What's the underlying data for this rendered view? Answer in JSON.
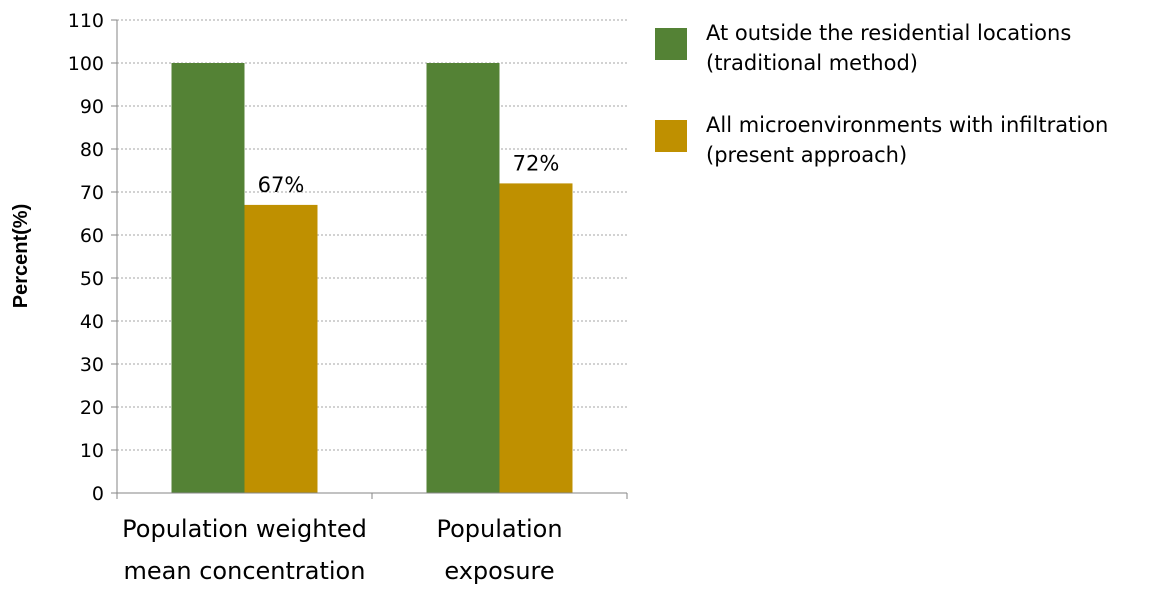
{
  "chart_data": {
    "type": "bar",
    "categories": [
      [
        "Population weighted",
        "mean concentration"
      ],
      [
        "Population",
        "exposure"
      ]
    ],
    "series": [
      {
        "name_lines": [
          "At outside the residential locations",
          "(traditional method)"
        ],
        "color": "#548235",
        "values": [
          100,
          100
        ],
        "labels": [
          "",
          ""
        ]
      },
      {
        "name_lines": [
          "All microenvironments with infiltration",
          "(present approach)"
        ],
        "color": "#bf9000",
        "values": [
          67,
          72
        ],
        "labels": [
          "67%",
          "72%"
        ]
      }
    ],
    "ylabel": "Percent(%)",
    "ylim": [
      0,
      110
    ],
    "yticks": [
      0,
      10,
      20,
      30,
      40,
      50,
      60,
      70,
      80,
      90,
      100,
      110
    ],
    "grid": true,
    "gridline_color": "#a6a6a6",
    "axis_color": "#868686",
    "legend_position": "right"
  }
}
